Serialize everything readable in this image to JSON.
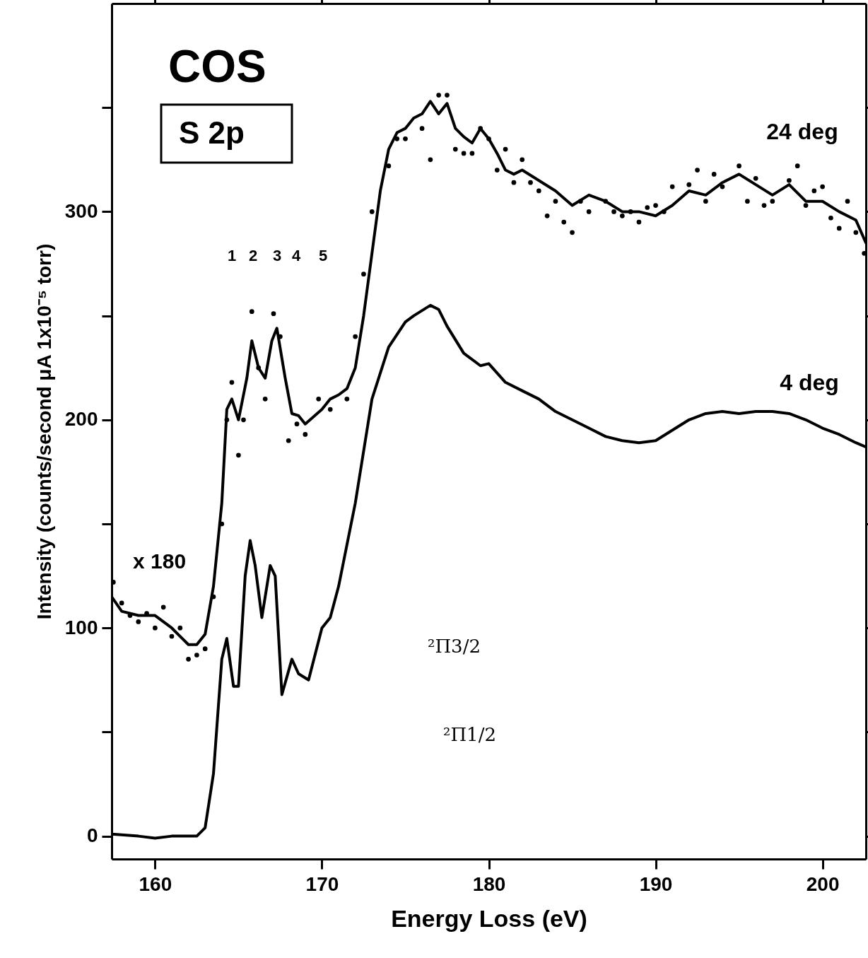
{
  "chart_data": {
    "type": "line",
    "xlabel": "Energy Loss (eV)",
    "ylabel": "Intensity (counts/second μA 1x10⁻⁵ torr)",
    "xlim": [
      157.4,
      202.6
    ],
    "ylim": [
      -11,
      400
    ],
    "xticks": [
      160,
      170,
      180,
      190,
      200
    ],
    "yticks": [
      0,
      {
        "value": 50,
        "label": null
      },
      100,
      {
        "value": 150,
        "label": null
      },
      200,
      {
        "value": 250,
        "label": null
      },
      300,
      {
        "value": 350,
        "label": null
      }
    ],
    "grid": false,
    "annotations": [
      "COS",
      "S 2p",
      "x 180",
      "24 deg",
      "4 deg",
      "1",
      "2",
      "3",
      "4",
      "5",
      "²Π3/2",
      "²Π1/2"
    ],
    "series": [
      {
        "color": "#000000",
        "x": [
          157.4,
          158,
          159,
          160,
          161,
          162,
          162.5,
          163,
          163.5,
          164,
          164.3,
          164.6,
          165,
          165.5,
          165.8,
          166.2,
          166.6,
          167,
          167.3,
          167.8,
          168.2,
          168.6,
          169,
          170,
          170.5,
          171,
          171.5,
          172,
          172.5,
          173,
          173.5,
          174,
          174.5,
          175,
          175.5,
          176,
          176.5,
          177,
          177.5,
          178,
          178.5,
          179,
          179.5,
          180,
          180.5,
          181,
          181.5,
          182,
          183,
          184,
          185,
          186,
          187,
          188,
          189,
          190,
          191,
          192,
          193,
          194,
          195,
          196,
          197,
          198,
          199,
          200,
          201,
          202,
          202.6
        ],
        "values": [
          115,
          108,
          106,
          106,
          100,
          92,
          92,
          97,
          120,
          160,
          205,
          210,
          200,
          220,
          238,
          225,
          220,
          238,
          244,
          220,
          203,
          202,
          198,
          205,
          210,
          212,
          215,
          225,
          250,
          280,
          310,
          330,
          338,
          340,
          345,
          347,
          353,
          347,
          352,
          340,
          336,
          333,
          340,
          335,
          328,
          320,
          318,
          320,
          315,
          310,
          303,
          308,
          305,
          300,
          300,
          298,
          303,
          310,
          308,
          314,
          318,
          313,
          308,
          313,
          305,
          305,
          300,
          296,
          285
        ]
      },
      {
        "type": "scatter",
        "color": "#000000",
        "marker": "circle",
        "x": [
          157.5,
          158,
          158.5,
          159,
          159.5,
          160,
          160.5,
          161,
          161.5,
          162,
          162.5,
          163,
          163.5,
          164,
          164.3,
          164.6,
          165,
          165.3,
          165.8,
          166.2,
          166.6,
          167.1,
          167.5,
          168,
          168.5,
          169,
          169.8,
          170.5,
          171.5,
          172,
          172.5,
          173,
          174,
          174.5,
          175,
          176,
          176.5,
          177,
          177.5,
          178,
          178.5,
          179,
          179.5,
          180,
          180.5,
          181,
          181.5,
          182,
          182.5,
          183,
          183.5,
          184,
          184.5,
          185,
          185.5,
          186,
          187,
          187.5,
          188,
          188.5,
          189,
          189.5,
          190,
          190.5,
          191,
          192,
          192.5,
          193,
          193.5,
          194,
          195,
          195.5,
          196,
          196.5,
          197,
          198,
          198.5,
          199,
          199.5,
          200,
          200.5,
          201,
          201.5,
          202,
          202.5
        ],
        "values": [
          122,
          112,
          106,
          103,
          107,
          100,
          110,
          96,
          100,
          85,
          87,
          90,
          115,
          150,
          200,
          218,
          183,
          200,
          252,
          225,
          210,
          251,
          240,
          190,
          198,
          193,
          210,
          205,
          210,
          240,
          270,
          300,
          322,
          335,
          335,
          340,
          325,
          356,
          356,
          330,
          328,
          328,
          340,
          335,
          320,
          330,
          314,
          325,
          314,
          310,
          298,
          305,
          295,
          290,
          305,
          300,
          305,
          300,
          298,
          300,
          295,
          302,
          303,
          300,
          312,
          313,
          320,
          305,
          318,
          312,
          322,
          305,
          316,
          303,
          305,
          315,
          322,
          303,
          310,
          312,
          297,
          292,
          305,
          290,
          280
        ]
      },
      {
        "color": "#000000",
        "x": [
          157.4,
          159,
          160,
          161,
          162.5,
          163,
          163.5,
          164,
          164.3,
          164.7,
          165,
          165.4,
          165.7,
          166,
          166.4,
          166.9,
          167.2,
          167.6,
          168.2,
          168.6,
          169.2,
          170,
          170.5,
          171,
          172,
          173,
          174,
          175,
          175.5,
          176.5,
          177,
          177.5,
          178.5,
          179.5,
          180,
          181,
          182,
          183,
          184,
          185,
          186,
          187,
          188,
          189,
          190,
          191,
          192,
          193,
          194,
          195,
          196,
          197,
          198,
          199,
          200,
          201,
          202,
          202.6
        ],
        "values": [
          1,
          0,
          -1,
          0,
          0,
          4,
          30,
          85,
          95,
          72,
          72,
          125,
          142,
          130,
          105,
          130,
          125,
          68,
          85,
          78,
          75,
          100,
          105,
          120,
          160,
          210,
          235,
          247,
          250,
          255,
          253,
          245,
          232,
          226,
          227,
          218,
          214,
          210,
          204,
          200,
          196,
          192,
          190,
          189,
          190,
          195,
          200,
          203,
          204,
          203,
          204,
          204,
          203,
          200,
          196,
          193,
          189,
          187
        ]
      }
    ]
  }
}
